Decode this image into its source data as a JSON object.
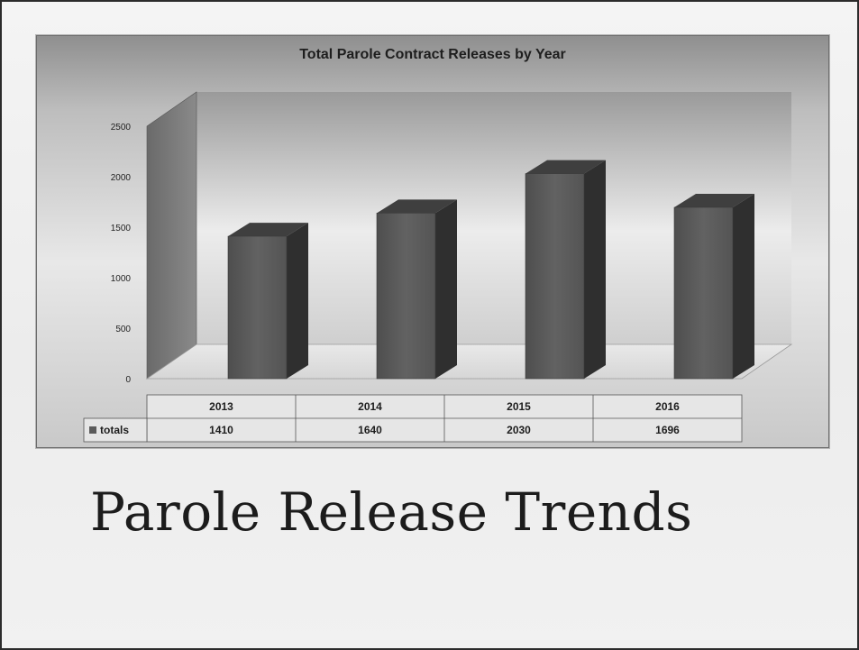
{
  "slide": {
    "title": "Parole Release Trends"
  },
  "chart_data": {
    "type": "bar",
    "title": "Total Parole Contract Releases by Year",
    "categories": [
      "2013",
      "2014",
      "2015",
      "2016"
    ],
    "series": [
      {
        "name": "totals",
        "values": [
          1410,
          1640,
          2030,
          1696
        ]
      }
    ],
    "yticks": [
      0,
      500,
      1000,
      1500,
      2000,
      2500
    ],
    "ylim": [
      0,
      2500
    ],
    "three_d": true,
    "data_table": true,
    "legend": "in data table",
    "colors": {
      "bar_front": "#5b5b5b",
      "bar_side": "#2f2f2f",
      "bar_top": "#3f3f3f"
    }
  }
}
